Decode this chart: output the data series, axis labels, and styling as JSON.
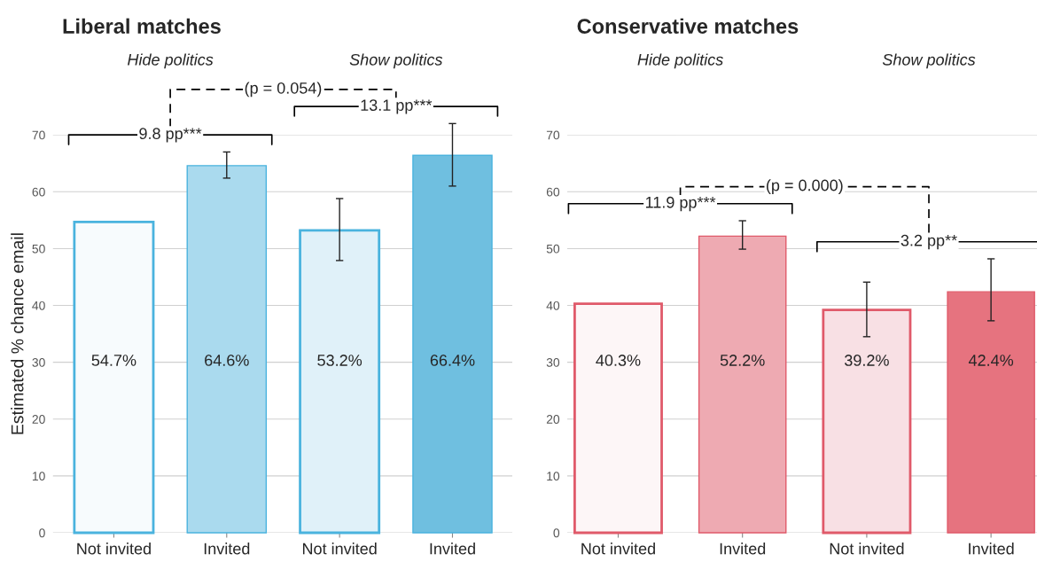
{
  "chart_data": [
    {
      "type": "bar",
      "title": "Liberal matches",
      "ylabel": "Estimated % chance email",
      "categories": [
        "Not invited",
        "Invited",
        "Not invited",
        "Invited"
      ],
      "values": [
        54.7,
        64.6,
        53.2,
        66.4
      ],
      "errors": [
        null,
        [
          62.4,
          67.0
        ],
        [
          47.9,
          58.8
        ],
        [
          61.0,
          72.0
        ]
      ],
      "value_labels": [
        "54.7%",
        "64.6%",
        "53.2%",
        "66.4%"
      ],
      "color": "#4ab3de",
      "colors": [
        "#f7fbfd",
        "#aadaee",
        "#e0f1f9",
        "#6fbfe0"
      ],
      "annotations": [
        "Hide politics",
        "Show politics",
        "9.8 pp***",
        "13.1 pp***",
        "(p = 0.054)"
      ],
      "ylim": [
        0,
        70
      ],
      "yticks": [
        0,
        10,
        20,
        30,
        40,
        50,
        60,
        70
      ],
      "grid": "y"
    },
    {
      "type": "bar",
      "title": "Conservative matches",
      "categories": [
        "Not invited",
        "Invited",
        "Not invited",
        "Invited"
      ],
      "values": [
        40.3,
        52.2,
        39.2,
        42.4
      ],
      "errors": [
        null,
        [
          49.9,
          54.9
        ],
        [
          34.5,
          44.1
        ],
        [
          37.3,
          48.2
        ]
      ],
      "value_labels": [
        "40.3%",
        "52.2%",
        "39.2%",
        "42.4%"
      ],
      "color": "#e05a6a",
      "colors": [
        "#fdf6f7",
        "#eeaab2",
        "#f8e0e4",
        "#e6737f"
      ],
      "annotations": [
        "Hide politics",
        "Show politics",
        "11.9 pp***",
        "3.2 pp**",
        "(p = 0.000)"
      ],
      "ylim": [
        0,
        70
      ],
      "yticks": [
        0,
        10,
        20,
        30,
        40,
        50,
        60,
        70
      ],
      "grid": "y"
    }
  ]
}
